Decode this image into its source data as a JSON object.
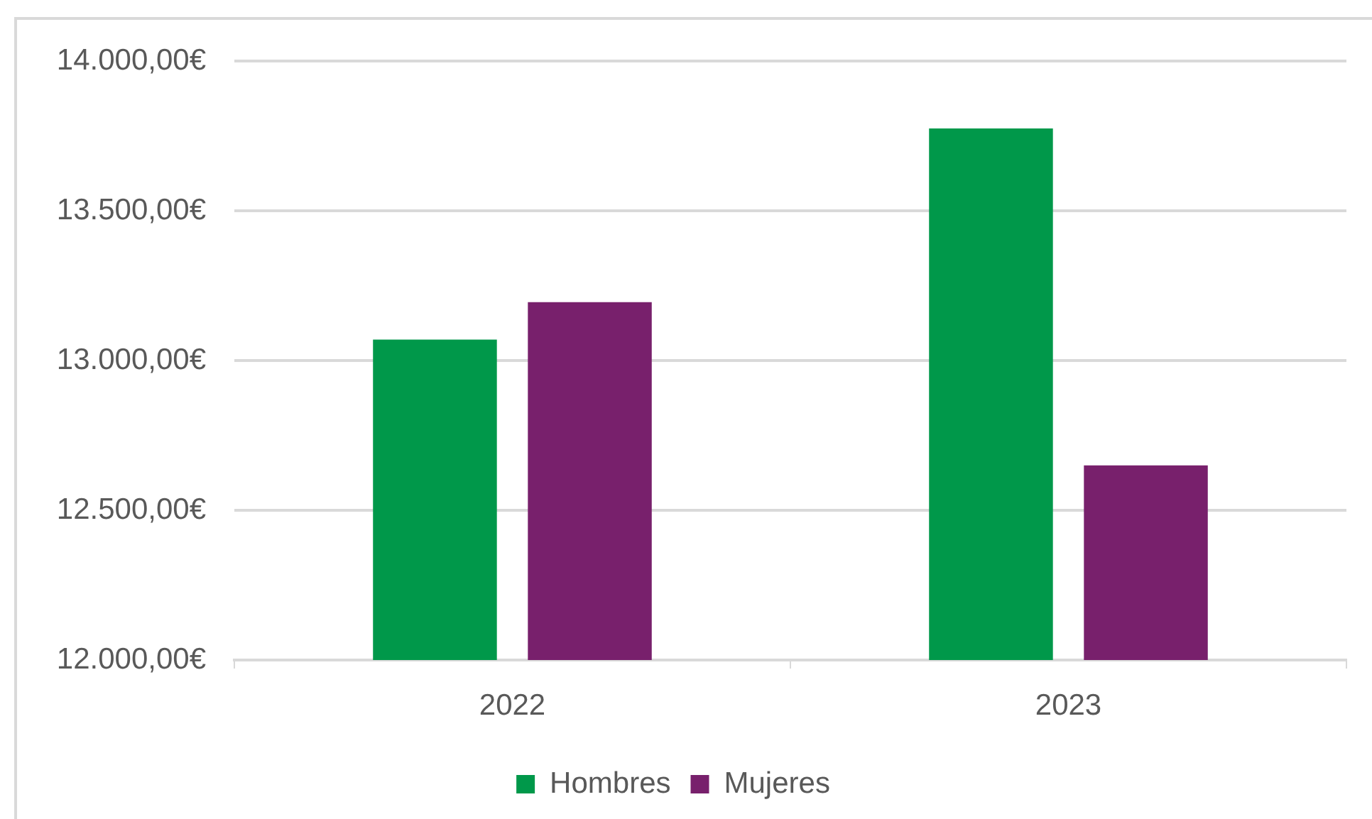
{
  "chart_data": {
    "type": "bar",
    "categories": [
      "2022",
      "2023"
    ],
    "series": [
      {
        "name": "Hombres",
        "color": "#00984a",
        "values": [
          13070,
          13775
        ]
      },
      {
        "name": "Mujeres",
        "color": "#78206c",
        "values": [
          13195,
          12650
        ]
      }
    ],
    "ylim": [
      12000,
      14000
    ],
    "yticks": [
      {
        "value": 12000,
        "label": "12.000,00€"
      },
      {
        "value": 12500,
        "label": "12.500,00€"
      },
      {
        "value": 13000,
        "label": "13.000,00€"
      },
      {
        "value": 13500,
        "label": "13.500,00€"
      },
      {
        "value": 14000,
        "label": "14.000,00€"
      }
    ],
    "grid": "y",
    "legend": "bottom"
  }
}
